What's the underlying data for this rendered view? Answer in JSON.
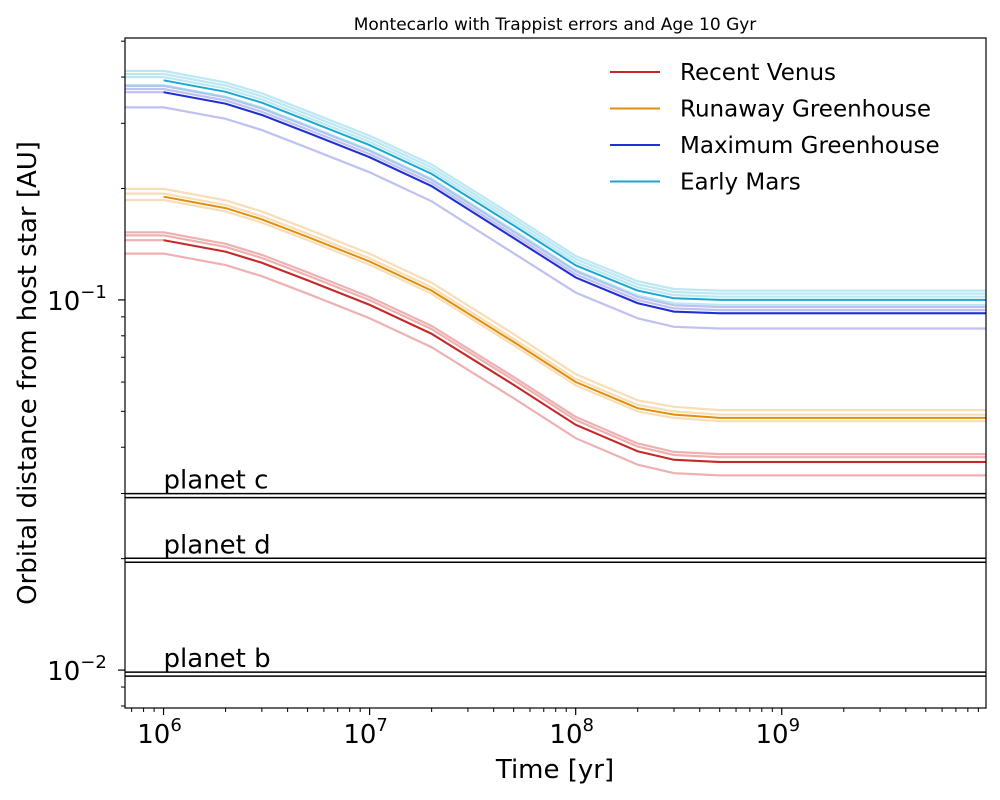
{
  "chart_data": {
    "type": "line",
    "title": "Montecarlo with Trappist errors and Age 10 Gyr",
    "xlabel": "Time [yr]",
    "ylabel": "Orbital distance from host star [AU]",
    "xscale": "log",
    "yscale": "log",
    "xlim": [
      650000,
      9800000000
    ],
    "ylim": [
      0.0079,
      0.51
    ],
    "grid": false,
    "legend_position": "top-right",
    "x_ticks": [
      {
        "value": 1000000,
        "base": "10",
        "exp": "6"
      },
      {
        "value": 10000000,
        "base": "10",
        "exp": "7"
      },
      {
        "value": 100000000,
        "base": "10",
        "exp": "8"
      },
      {
        "value": 1000000000,
        "base": "10",
        "exp": "9"
      }
    ],
    "y_ticks": [
      {
        "value": 0.01,
        "base": "10",
        "exp": "−2"
      },
      {
        "value": 0.1,
        "base": "10",
        "exp": "−1"
      }
    ],
    "x": [
      650000,
      1000000,
      2000000,
      3000000,
      5000000,
      10000000,
      20000000,
      50000000,
      100000000,
      200000000,
      300000000,
      500000000,
      1000000000,
      3000000000,
      9800000000
    ],
    "series": [
      {
        "name": "Recent Venus",
        "color": "#c62828",
        "band_color": "#e07070",
        "values": [
          0.145,
          0.145,
          0.135,
          0.126,
          0.113,
          0.097,
          0.081,
          0.059,
          0.046,
          0.039,
          0.037,
          0.0365,
          0.0365,
          0.0365,
          0.0365
        ],
        "band": [
          0.92,
          1.0,
          1.03,
          1.05
        ],
        "band_offset_fraction": 0.08
      },
      {
        "name": "Runaway Greenhouse",
        "color": "#e08e0b",
        "band_color": "#f2c27a",
        "values": [
          0.19,
          0.19,
          0.177,
          0.165,
          0.148,
          0.127,
          0.106,
          0.077,
          0.06,
          0.051,
          0.049,
          0.048,
          0.048,
          0.048,
          0.048
        ],
        "band": [
          0.98,
          1.02,
          1.05
        ],
        "band_offset_fraction": 0.08
      },
      {
        "name": "Maximum Greenhouse",
        "color": "#1f2fd1",
        "band_color": "#8a8ee6",
        "values": [
          0.364,
          0.364,
          0.339,
          0.316,
          0.283,
          0.243,
          0.203,
          0.147,
          0.115,
          0.098,
          0.093,
          0.092,
          0.092,
          0.092,
          0.092
        ],
        "band": [
          0.91,
          1.0,
          1.02,
          1.04
        ],
        "band_offset_fraction": 0.08
      },
      {
        "name": "Early Mars",
        "color": "#1aa7cf",
        "band_color": "#86d6ea",
        "values": [
          0.392,
          0.392,
          0.365,
          0.341,
          0.305,
          0.262,
          0.219,
          0.159,
          0.124,
          0.106,
          0.101,
          0.1,
          0.1,
          0.1,
          0.1
        ],
        "band": [
          0.97,
          1.02,
          1.04,
          1.06
        ],
        "band_offset_fraction": 0.08
      }
    ],
    "reference_lines": [
      {
        "label": "planet c",
        "value": 0.0296
      },
      {
        "label": "planet d",
        "value": 0.0198
      },
      {
        "label": "planet b",
        "value": 0.00975
      }
    ],
    "reference_line_style": {
      "color": "#000000",
      "dash_color": "#ffffff"
    },
    "label_x": 1000000
  }
}
